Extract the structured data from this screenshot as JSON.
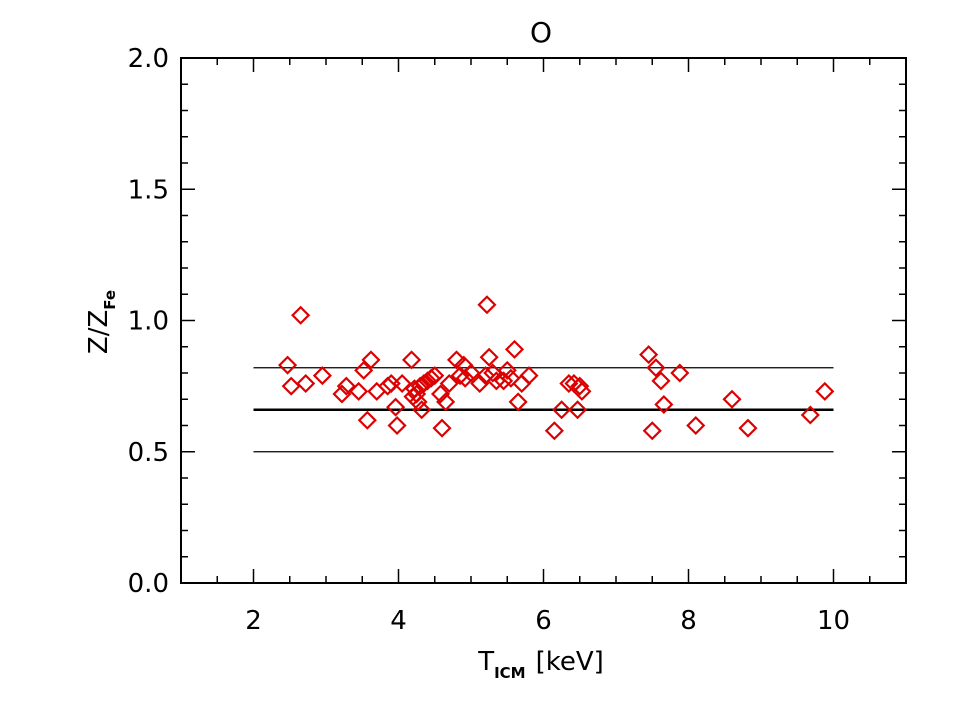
{
  "chart_data": {
    "type": "scatter",
    "title": "O",
    "xlabel": {
      "main": "T",
      "sub": "ICM",
      "unit": "[keV]"
    },
    "ylabel": {
      "main": "Z/Z",
      "sub": "Fe"
    },
    "xlim": [
      1,
      11
    ],
    "ylim": [
      0,
      2.0
    ],
    "x_ticks": [
      2,
      4,
      6,
      8,
      10
    ],
    "x_tick_labels": [
      "2",
      "4",
      "6",
      "8",
      "10"
    ],
    "y_ticks": [
      0,
      0.5,
      1.0,
      1.5,
      2.0
    ],
    "y_tick_labels": [
      "0.0",
      "0.5",
      "1.0",
      "1.5",
      "2.0"
    ],
    "marker": "diamond",
    "marker_color": "#dd0000",
    "line_color": "#000000",
    "reference_lines": [
      {
        "y": 0.82,
        "x_range": [
          2,
          10
        ],
        "bold": false
      },
      {
        "y": 0.66,
        "x_range": [
          2,
          10
        ],
        "bold": true
      },
      {
        "y": 0.5,
        "x_range": [
          2,
          10
        ],
        "bold": false
      }
    ],
    "points": [
      {
        "x": 2.47,
        "y": 0.83
      },
      {
        "x": 2.52,
        "y": 0.75
      },
      {
        "x": 2.65,
        "y": 1.02
      },
      {
        "x": 2.72,
        "y": 0.76
      },
      {
        "x": 2.95,
        "y": 0.79
      },
      {
        "x": 3.22,
        "y": 0.72
      },
      {
        "x": 3.28,
        "y": 0.75
      },
      {
        "x": 3.45,
        "y": 0.73
      },
      {
        "x": 3.52,
        "y": 0.81
      },
      {
        "x": 3.57,
        "y": 0.62
      },
      {
        "x": 3.62,
        "y": 0.85
      },
      {
        "x": 3.7,
        "y": 0.73
      },
      {
        "x": 3.85,
        "y": 0.75
      },
      {
        "x": 3.9,
        "y": 0.76
      },
      {
        "x": 3.96,
        "y": 0.67
      },
      {
        "x": 3.98,
        "y": 0.6
      },
      {
        "x": 4.05,
        "y": 0.76
      },
      {
        "x": 4.18,
        "y": 0.85
      },
      {
        "x": 4.2,
        "y": 0.71
      },
      {
        "x": 4.22,
        "y": 0.74
      },
      {
        "x": 4.25,
        "y": 0.72
      },
      {
        "x": 4.27,
        "y": 0.69
      },
      {
        "x": 4.3,
        "y": 0.75
      },
      {
        "x": 4.32,
        "y": 0.66
      },
      {
        "x": 4.35,
        "y": 0.76
      },
      {
        "x": 4.4,
        "y": 0.77
      },
      {
        "x": 4.45,
        "y": 0.78
      },
      {
        "x": 4.5,
        "y": 0.79
      },
      {
        "x": 4.58,
        "y": 0.72
      },
      {
        "x": 4.6,
        "y": 0.59
      },
      {
        "x": 4.65,
        "y": 0.69
      },
      {
        "x": 4.7,
        "y": 0.76
      },
      {
        "x": 4.8,
        "y": 0.85
      },
      {
        "x": 4.85,
        "y": 0.79
      },
      {
        "x": 4.9,
        "y": 0.83
      },
      {
        "x": 4.92,
        "y": 0.78
      },
      {
        "x": 5.0,
        "y": 0.8
      },
      {
        "x": 5.12,
        "y": 0.76
      },
      {
        "x": 5.2,
        "y": 0.79
      },
      {
        "x": 5.22,
        "y": 1.06
      },
      {
        "x": 5.25,
        "y": 0.86
      },
      {
        "x": 5.3,
        "y": 0.8
      },
      {
        "x": 5.35,
        "y": 0.77
      },
      {
        "x": 5.45,
        "y": 0.77
      },
      {
        "x": 5.5,
        "y": 0.81
      },
      {
        "x": 5.55,
        "y": 0.78
      },
      {
        "x": 5.6,
        "y": 0.89
      },
      {
        "x": 5.65,
        "y": 0.69
      },
      {
        "x": 5.7,
        "y": 0.76
      },
      {
        "x": 5.8,
        "y": 0.79
      },
      {
        "x": 6.15,
        "y": 0.58
      },
      {
        "x": 6.25,
        "y": 0.66
      },
      {
        "x": 6.35,
        "y": 0.76
      },
      {
        "x": 6.42,
        "y": 0.76
      },
      {
        "x": 6.47,
        "y": 0.66
      },
      {
        "x": 6.5,
        "y": 0.75
      },
      {
        "x": 6.53,
        "y": 0.73
      },
      {
        "x": 7.45,
        "y": 0.87
      },
      {
        "x": 7.5,
        "y": 0.58
      },
      {
        "x": 7.55,
        "y": 0.82
      },
      {
        "x": 7.62,
        "y": 0.77
      },
      {
        "x": 7.66,
        "y": 0.68
      },
      {
        "x": 7.88,
        "y": 0.8
      },
      {
        "x": 8.1,
        "y": 0.6
      },
      {
        "x": 8.6,
        "y": 0.7
      },
      {
        "x": 8.82,
        "y": 0.59
      },
      {
        "x": 9.68,
        "y": 0.64
      },
      {
        "x": 9.88,
        "y": 0.73
      }
    ]
  }
}
